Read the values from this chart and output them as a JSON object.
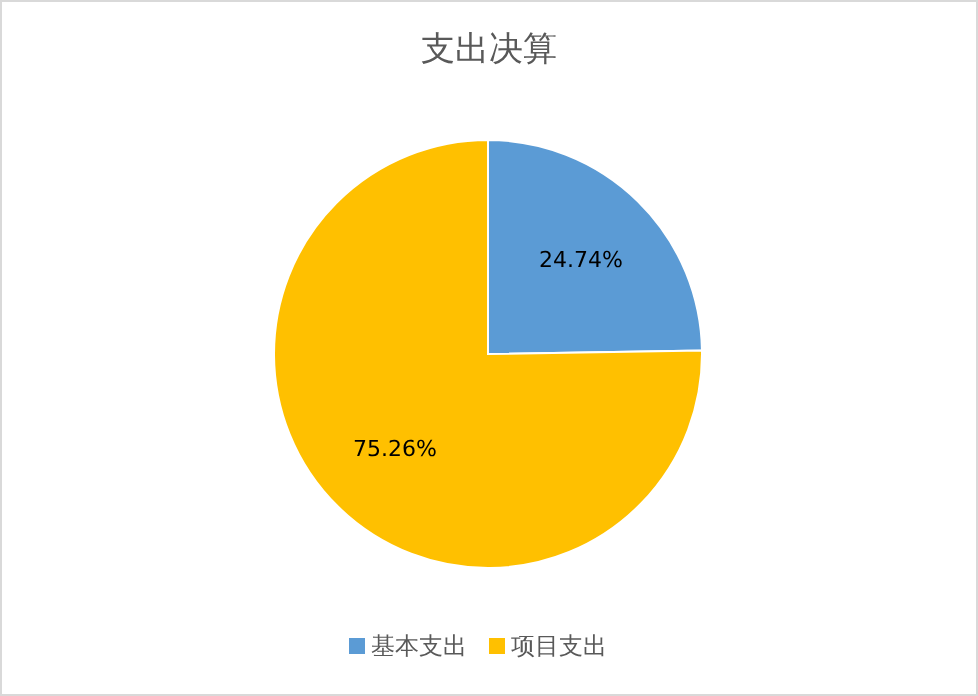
{
  "chart_data": {
    "type": "pie",
    "title": "支出决算",
    "categories": [
      "基本支出",
      "项目支出"
    ],
    "values": [
      24.74,
      75.26
    ],
    "colors": [
      "#5b9bd5",
      "#ffc000"
    ],
    "value_labels": [
      "24.74%",
      "75.26%"
    ],
    "legend": "bottom"
  }
}
